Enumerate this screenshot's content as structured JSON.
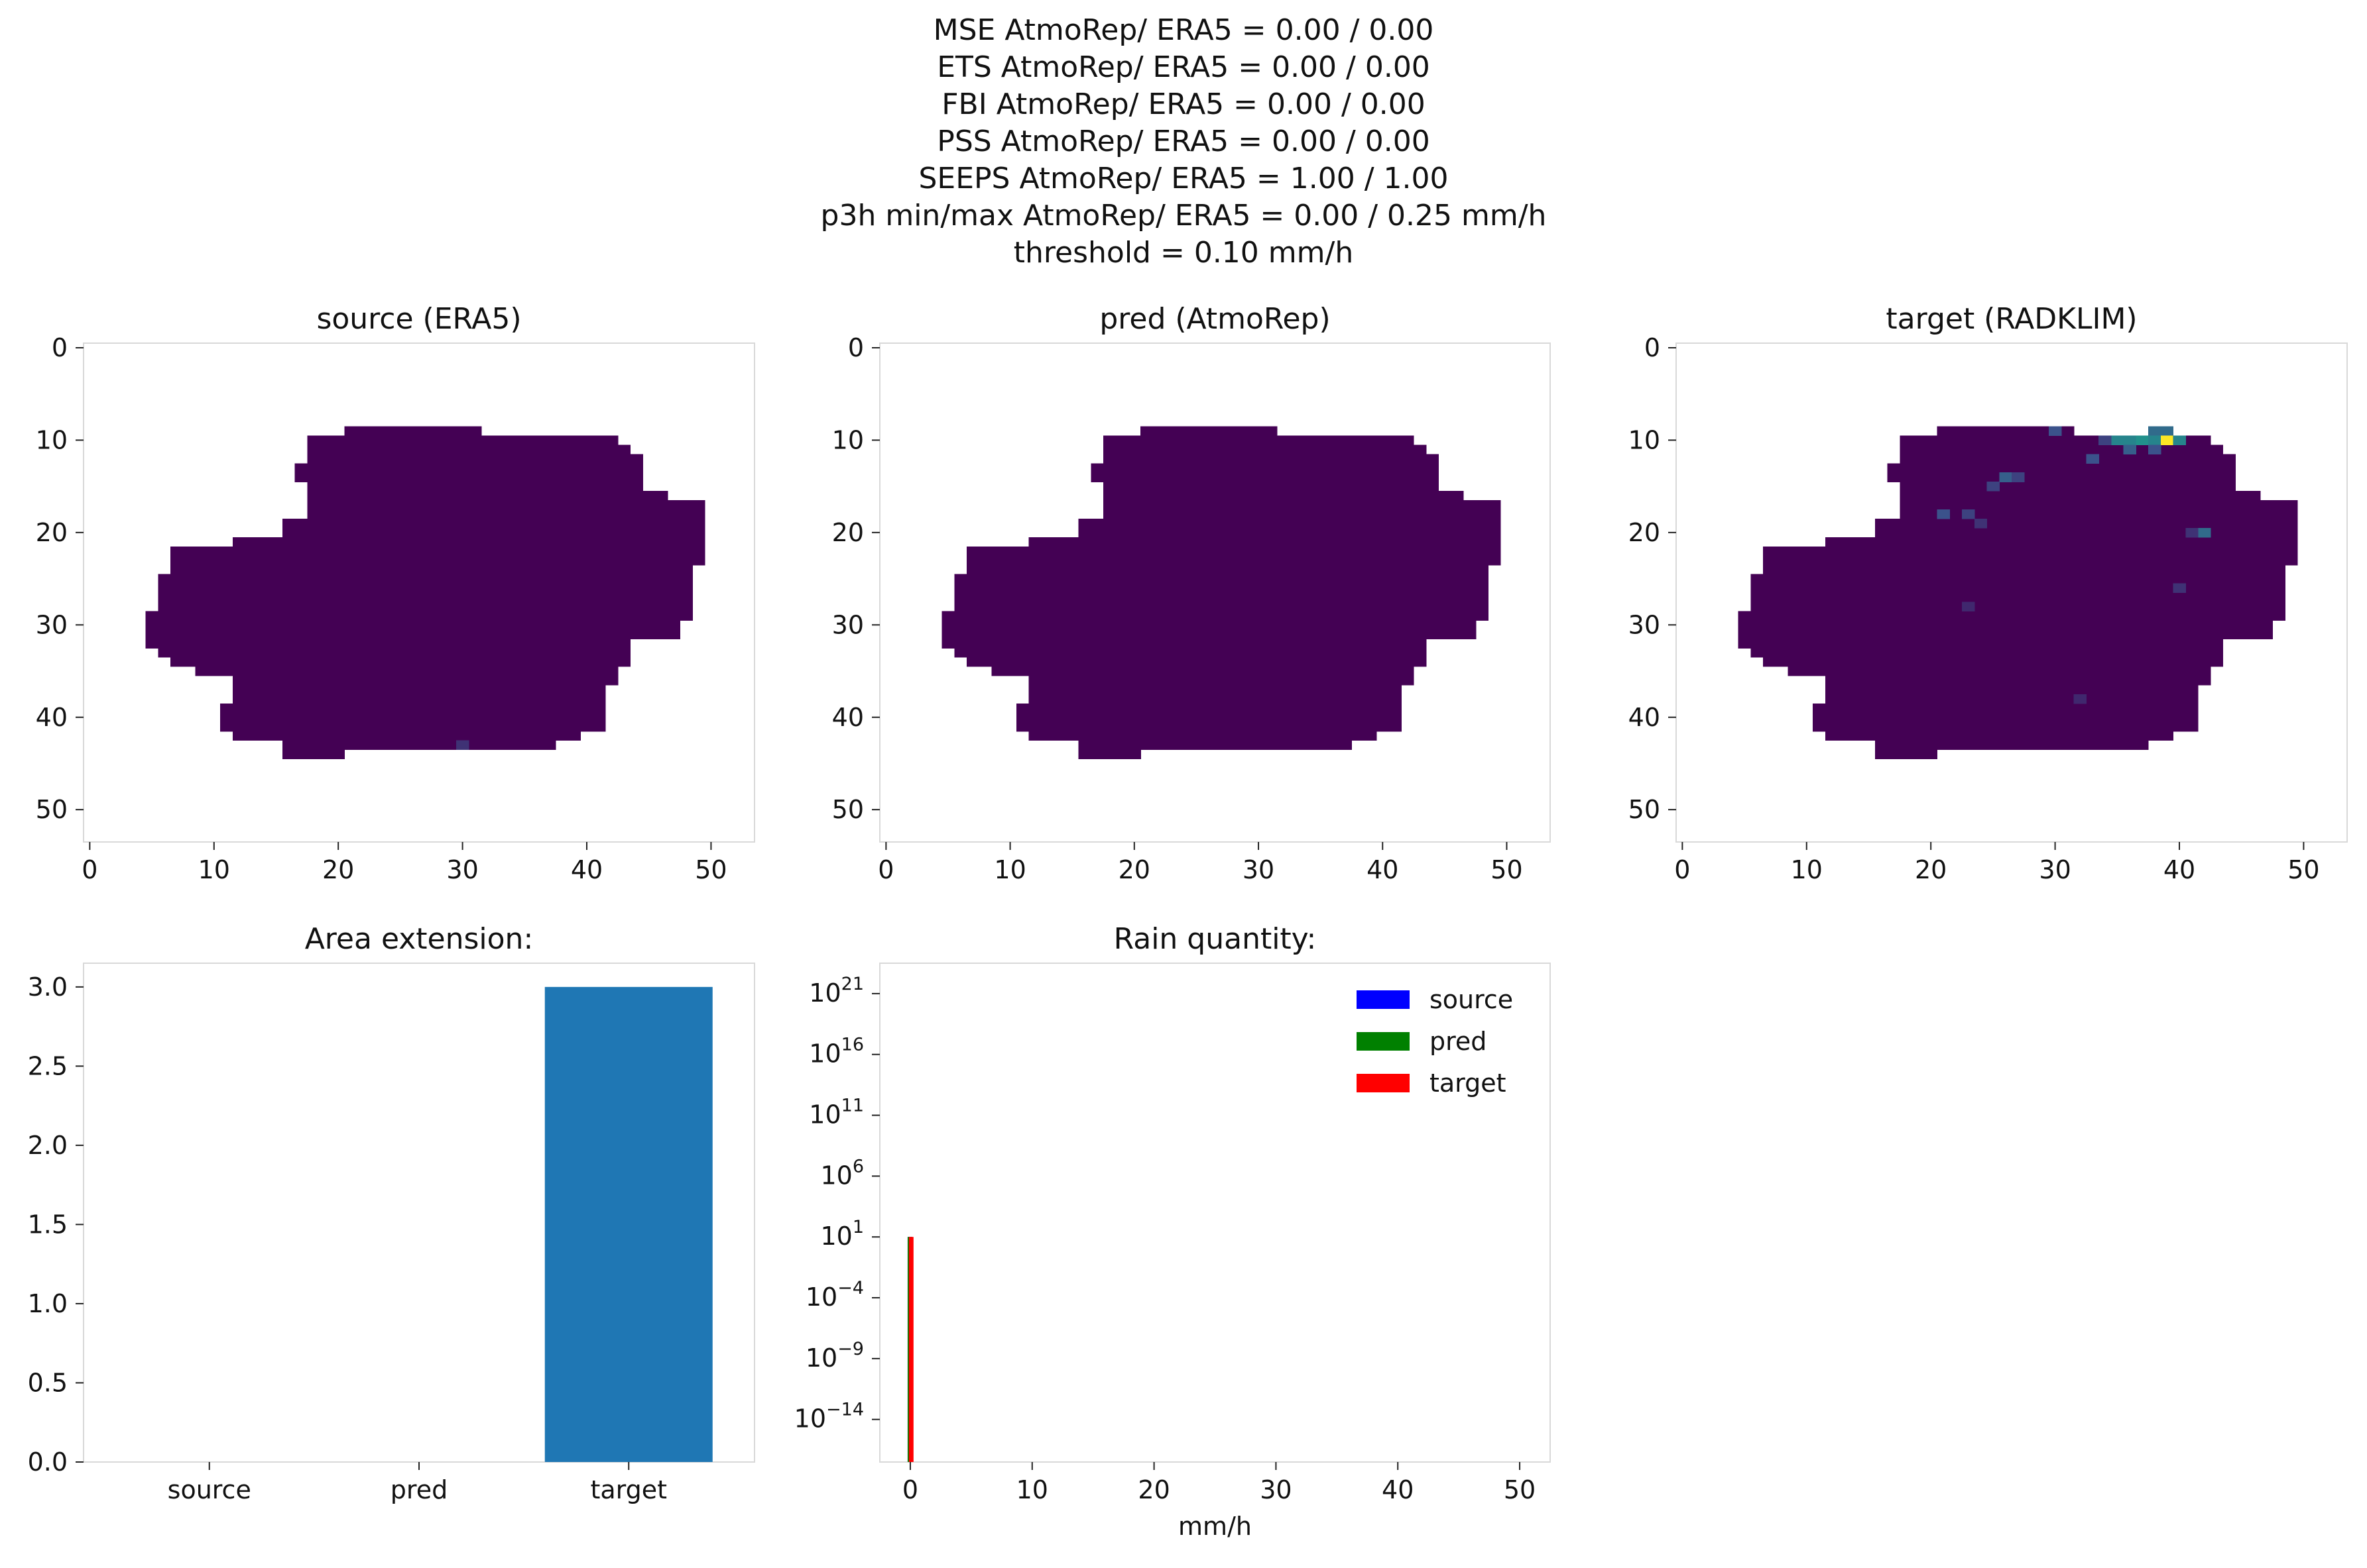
{
  "suptitle": [
    "MSE AtmoRep/ ERA5 = 0.00 / 0.00",
    "ETS AtmoRep/ ERA5 = 0.00 / 0.00",
    "FBI AtmoRep/ ERA5 = 0.00 / 0.00",
    "PSS AtmoRep/ ERA5 = 0.00 / 0.00",
    "SEEPS AtmoRep/ ERA5 = 1.00 / 1.00",
    "p3h min/max AtmoRep/ ERA5 = 0.00 / 0.25 mm/h",
    "threshold = 0.10 mm/h"
  ],
  "colors": {
    "viridis_low": "#440154",
    "viridis_mid": "#3b528b",
    "viridis_teal": "#21918c",
    "viridis_yellow": "#fde725",
    "bar_blue": "#1f77b4",
    "hist_source": "#0000ff",
    "hist_pred": "#008000",
    "hist_target": "#ff0000",
    "axes_edge": "#d9d9d9"
  },
  "chart_data": [
    {
      "type": "heatmap",
      "title": "source (ERA5)",
      "xlim": [
        -0.5,
        53.5
      ],
      "ylim": [
        53.5,
        -0.5
      ],
      "xticks": [
        0,
        10,
        20,
        30,
        40,
        50
      ],
      "yticks": [
        0,
        10,
        20,
        30,
        40,
        50
      ],
      "colormap": "viridis",
      "grid": false,
      "region": "cloud",
      "precip_range_mm_h": [
        0.0,
        0.25
      ],
      "highlight_cells": [
        {
          "row": 43,
          "col": 30,
          "level": 0.15
        }
      ]
    },
    {
      "type": "heatmap",
      "title": "pred (AtmoRep)",
      "xlim": [
        -0.5,
        53.5
      ],
      "ylim": [
        53.5,
        -0.5
      ],
      "xticks": [
        0,
        10,
        20,
        30,
        40,
        50
      ],
      "yticks": [
        0,
        10,
        20,
        30,
        40,
        50
      ],
      "colormap": "viridis",
      "grid": false,
      "region": "cloud",
      "precip_range_mm_h": [
        0.0,
        0.0
      ],
      "highlight_cells": []
    },
    {
      "type": "heatmap",
      "title": "target (RADKLIM)",
      "xlim": [
        -0.5,
        53.5
      ],
      "ylim": [
        53.5,
        -0.5
      ],
      "xticks": [
        0,
        10,
        20,
        30,
        40,
        50
      ],
      "yticks": [
        0,
        10,
        20,
        30,
        40,
        50
      ],
      "colormap": "viridis",
      "grid": false,
      "region": "cloud",
      "highlight_cells": [
        {
          "row": 9,
          "col": 30,
          "level": 0.25
        },
        {
          "row": 9,
          "col": 38,
          "level": 0.35
        },
        {
          "row": 9,
          "col": 39,
          "level": 0.35
        },
        {
          "row": 10,
          "col": 35,
          "level": 0.45
        },
        {
          "row": 10,
          "col": 36,
          "level": 0.45
        },
        {
          "row": 10,
          "col": 37,
          "level": 0.5
        },
        {
          "row": 10,
          "col": 38,
          "level": 0.45
        },
        {
          "row": 10,
          "col": 39,
          "level": 1.0
        },
        {
          "row": 10,
          "col": 40,
          "level": 0.45
        },
        {
          "row": 10,
          "col": 34,
          "level": 0.2
        },
        {
          "row": 11,
          "col": 36,
          "level": 0.3
        },
        {
          "row": 11,
          "col": 38,
          "level": 0.25
        },
        {
          "row": 12,
          "col": 33,
          "level": 0.25
        },
        {
          "row": 14,
          "col": 26,
          "level": 0.3
        },
        {
          "row": 14,
          "col": 27,
          "level": 0.2
        },
        {
          "row": 15,
          "col": 25,
          "level": 0.2
        },
        {
          "row": 18,
          "col": 21,
          "level": 0.25
        },
        {
          "row": 18,
          "col": 23,
          "level": 0.2
        },
        {
          "row": 20,
          "col": 42,
          "level": 0.35
        },
        {
          "row": 20,
          "col": 41,
          "level": 0.15
        },
        {
          "row": 19,
          "col": 24,
          "level": 0.15
        },
        {
          "row": 26,
          "col": 40,
          "level": 0.15
        },
        {
          "row": 28,
          "col": 23,
          "level": 0.12
        },
        {
          "row": 38,
          "col": 32,
          "level": 0.12
        }
      ]
    },
    {
      "type": "bar",
      "title": "Area extension:",
      "categories": [
        "source",
        "pred",
        "target"
      ],
      "values": [
        0,
        0,
        3
      ],
      "ylim": [
        0,
        3.15
      ],
      "yticks": [
        0.0,
        0.5,
        1.0,
        1.5,
        2.0,
        2.5,
        3.0
      ],
      "grid": false
    },
    {
      "type": "bar",
      "title": "Rain quantity:",
      "xlabel": "mm/h",
      "yscale": "log",
      "xlim": [
        -2.5,
        52.5
      ],
      "xticks": [
        0,
        10,
        20,
        30,
        40,
        50
      ],
      "ylim_exp": [
        -17.5,
        23.5
      ],
      "yticks_exp": [
        -14,
        -9,
        -4,
        1,
        6,
        11,
        16,
        21
      ],
      "legend_loc": "upper right",
      "grid": false,
      "series": [
        {
          "name": "source",
          "color": "#0000ff",
          "x": [
            0.0
          ],
          "heights": [
            10
          ]
        },
        {
          "name": "pred",
          "color": "#008000",
          "x": [
            0.0
          ],
          "heights": [
            10
          ]
        },
        {
          "name": "target",
          "color": "#ff0000",
          "x": [
            0.1
          ],
          "heights": [
            10
          ]
        }
      ]
    }
  ]
}
